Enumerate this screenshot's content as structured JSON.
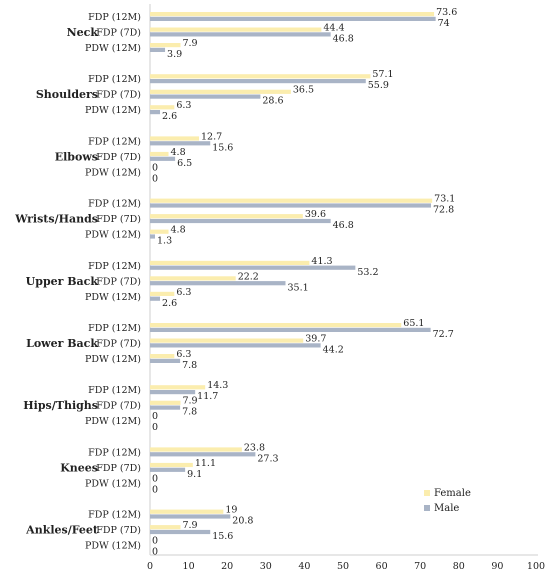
{
  "chart_data": {
    "type": "bar",
    "orientation": "horizontal",
    "xlim": [
      0,
      100
    ],
    "xticks": [
      "0",
      "10",
      "20",
      "30",
      "40",
      "50",
      "60",
      "70",
      "80",
      "90",
      "100"
    ],
    "subcategories": [
      "FDP (12M)",
      "FDP (7D)",
      "PDW (12M)"
    ],
    "legend": {
      "placement": "lower-right",
      "entries": [
        "Female",
        "Male"
      ]
    },
    "colors": {
      "Female": "#FBEDAE",
      "Male": "#A9B4C6"
    },
    "groups": [
      {
        "name": "Neck",
        "female": [
          73.6,
          44.4,
          7.9
        ],
        "male": [
          74,
          46.8,
          3.9
        ],
        "female_labels": [
          "73.6",
          "44.4",
          "7.9"
        ],
        "male_labels": [
          "74",
          "46.8",
          "3.9"
        ]
      },
      {
        "name": "Shoulders",
        "female": [
          57.1,
          36.5,
          6.3
        ],
        "male": [
          55.9,
          28.6,
          2.6
        ],
        "female_labels": [
          "57.1",
          "36.5",
          "6.3"
        ],
        "male_labels": [
          "55.9",
          "28.6",
          "2.6"
        ]
      },
      {
        "name": "Elbows",
        "female": [
          12.7,
          4.8,
          0
        ],
        "male": [
          15.6,
          6.5,
          0
        ],
        "female_labels": [
          "12.7",
          "4.8",
          "0"
        ],
        "male_labels": [
          "15.6",
          "6.5",
          "0"
        ]
      },
      {
        "name": "Wrists/Hands",
        "female": [
          73.1,
          39.6,
          4.8
        ],
        "male": [
          72.8,
          46.8,
          1.3
        ],
        "female_labels": [
          "73.1",
          "39.6",
          "4.8"
        ],
        "male_labels": [
          "72.8",
          "46.8",
          "1.3"
        ]
      },
      {
        "name": "Upper Back",
        "female": [
          41.3,
          22.2,
          6.3
        ],
        "male": [
          53.2,
          35.1,
          2.6
        ],
        "female_labels": [
          "41.3",
          "22.2",
          "6.3"
        ],
        "male_labels": [
          "53.2",
          "35.1",
          "2.6"
        ]
      },
      {
        "name": "Lower Back",
        "female": [
          65.1,
          39.7,
          6.3
        ],
        "male": [
          72.7,
          44.2,
          7.8
        ],
        "female_labels": [
          "65.1",
          "39.7",
          "6.3"
        ],
        "male_labels": [
          "72.7",
          "44.2",
          "7.8"
        ]
      },
      {
        "name": "Hips/Thighs",
        "female": [
          14.3,
          7.9,
          0
        ],
        "male": [
          11.7,
          7.8,
          0
        ],
        "female_labels": [
          "14.3",
          "7.9",
          "0"
        ],
        "male_labels": [
          "11.7",
          "7.8",
          "0"
        ]
      },
      {
        "name": "Knees",
        "female": [
          23.8,
          11.1,
          0
        ],
        "male": [
          27.3,
          9.1,
          0
        ],
        "female_labels": [
          "23.8",
          "11.1",
          "0"
        ],
        "male_labels": [
          "27.3",
          "9.1",
          "0"
        ]
      },
      {
        "name": "Ankles/Feet",
        "female": [
          19,
          7.9,
          0
        ],
        "male": [
          20.8,
          15.6,
          0
        ],
        "female_labels": [
          "19",
          "7.9",
          "0"
        ],
        "male_labels": [
          "20.8",
          "15.6",
          "0"
        ]
      }
    ]
  }
}
